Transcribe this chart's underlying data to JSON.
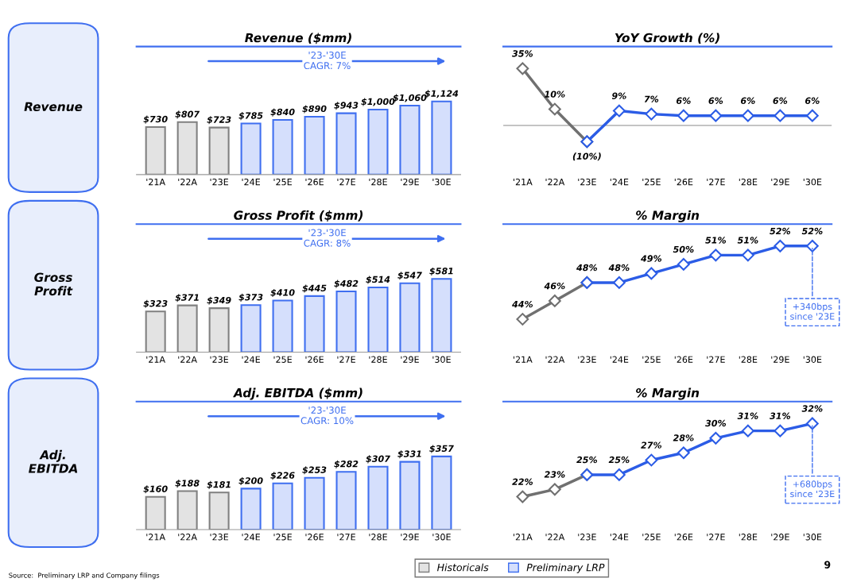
{
  "chart_data": [
    {
      "type": "bar",
      "title": "Revenue ($mm)",
      "ylabel": "Revenue",
      "categories": [
        "'21A",
        "'22A",
        "'23E",
        "'24E",
        "'25E",
        "'26E",
        "'27E",
        "'28E",
        "'29E",
        "'30E"
      ],
      "legend": "bottom",
      "series": [
        {
          "name": "Historicals",
          "color": "#808080",
          "values": [
            730,
            807,
            723,
            null,
            null,
            null,
            null,
            null,
            null,
            null
          ],
          "value_labels": [
            "$730",
            "$807",
            "$723",
            null,
            null,
            null,
            null,
            null,
            null,
            null
          ]
        },
        {
          "name": "Preliminary LRP",
          "color": "#3f6ff0",
          "values": [
            null,
            null,
            null,
            785,
            840,
            890,
            943,
            1000,
            1060,
            1124
          ],
          "value_labels": [
            null,
            null,
            null,
            "$785",
            "$840",
            "$890",
            "$943",
            "$1,000",
            "$1,060",
            "$1,124"
          ]
        }
      ],
      "annotations": [
        "'23-'30E\nCAGR: 7%",
        "Source:  Preliminary LRP and Company filings",
        "9"
      ]
    },
    {
      "type": "line",
      "title": "YoY Growth (%)",
      "categories": [
        "'21A",
        "'22A",
        "'23E",
        "'24E",
        "'25E",
        "'26E",
        "'27E",
        "'28E",
        "'29E",
        "'30E"
      ],
      "marker": "diamond",
      "series": [
        {
          "color": "#707070",
          "values": [
            35,
            10,
            -10,
            null,
            null,
            null,
            null,
            null,
            null,
            null
          ],
          "value_labels": [
            "35%",
            "10%",
            "(10%)",
            null,
            null,
            null,
            null,
            null,
            null,
            null
          ]
        },
        {
          "color": "#2b5ce6",
          "values": [
            null,
            null,
            -10,
            9,
            7,
            6,
            6,
            6,
            6,
            6
          ],
          "value_labels": [
            null,
            null,
            null,
            "9%",
            "7%",
            "6%",
            "6%",
            "6%",
            "6%",
            "6%"
          ]
        }
      ],
      "ref_lines": [
        {
          "axis": "y",
          "value": 0,
          "color": "#b0b0b0"
        }
      ]
    },
    {
      "type": "bar",
      "title": "Gross Profit ($mm)",
      "ylabel": "Gross\nProfit",
      "categories": [
        "'21A",
        "'22A",
        "'23E",
        "'24E",
        "'25E",
        "'26E",
        "'27E",
        "'28E",
        "'29E",
        "'30E"
      ],
      "series": [
        {
          "color": "#808080",
          "values": [
            323,
            371,
            349,
            null,
            null,
            null,
            null,
            null,
            null,
            null
          ],
          "value_labels": [
            "$323",
            "$371",
            "$349",
            null,
            null,
            null,
            null,
            null,
            null,
            null
          ]
        },
        {
          "color": "#3f6ff0",
          "values": [
            null,
            null,
            null,
            373,
            410,
            445,
            482,
            514,
            547,
            581
          ],
          "value_labels": [
            null,
            null,
            null,
            "$373",
            "$410",
            "$445",
            "$482",
            "$514",
            "$547",
            "$581"
          ]
        }
      ],
      "annotations": [
        "'23-'30E\nCAGR: 8%"
      ]
    },
    {
      "type": "line",
      "title": "% Margin",
      "categories": [
        "'21A",
        "'22A",
        "'23E",
        "'24E",
        "'25E",
        "'26E",
        "'27E",
        "'28E",
        "'29E",
        "'30E"
      ],
      "marker": "diamond",
      "series": [
        {
          "color": "#707070",
          "values": [
            44,
            46,
            48,
            null,
            null,
            null,
            null,
            null,
            null,
            null
          ],
          "value_labels": [
            "44%",
            "46%",
            "48%",
            null,
            null,
            null,
            null,
            null,
            null,
            null
          ]
        },
        {
          "color": "#2b5ce6",
          "values": [
            null,
            null,
            48,
            48,
            49,
            50,
            51,
            51,
            52,
            52
          ],
          "value_labels": [
            null,
            null,
            null,
            "48%",
            "49%",
            "50%",
            "51%",
            "51%",
            "52%",
            "52%"
          ]
        }
      ],
      "annotations": [
        {
          "text": "+340bps\nsince '23E",
          "x": "'30E",
          "y": 52
        }
      ]
    },
    {
      "type": "bar",
      "title": "Adj. EBITDA ($mm)",
      "ylabel": "Adj.\nEBITDA",
      "categories": [
        "'21A",
        "'22A",
        "'23E",
        "'24E",
        "'25E",
        "'26E",
        "'27E",
        "'28E",
        "'29E",
        "'30E"
      ],
      "series": [
        {
          "color": "#808080",
          "values": [
            160,
            188,
            181,
            null,
            null,
            null,
            null,
            null,
            null,
            null
          ],
          "value_labels": [
            "$160",
            "$188",
            "$181",
            null,
            null,
            null,
            null,
            null,
            null,
            null
          ]
        },
        {
          "color": "#3f6ff0",
          "values": [
            null,
            null,
            null,
            200,
            226,
            253,
            282,
            307,
            331,
            357
          ],
          "value_labels": [
            null,
            null,
            null,
            "$200",
            "$226",
            "$253",
            "$282",
            "$307",
            "$331",
            "$357"
          ]
        }
      ],
      "annotations": [
        "'23-'30E\nCAGR: 10%"
      ]
    },
    {
      "type": "line",
      "title": "% Margin",
      "categories": [
        "'21A",
        "'22A",
        "'23E",
        "'24E",
        "'25E",
        "'26E",
        "'27E",
        "'28E",
        "'29E",
        "'30E"
      ],
      "marker": "diamond",
      "series": [
        {
          "color": "#707070",
          "values": [
            22,
            23,
            25,
            null,
            null,
            null,
            null,
            null,
            null,
            null
          ],
          "value_labels": [
            "22%",
            "23%",
            "25%",
            null,
            null,
            null,
            null,
            null,
            null,
            null
          ]
        },
        {
          "color": "#2b5ce6",
          "values": [
            null,
            null,
            25,
            25,
            27,
            28,
            30,
            31,
            31,
            32
          ],
          "value_labels": [
            null,
            null,
            null,
            "25%",
            "27%",
            "28%",
            "30%",
            "31%",
            "31%",
            "32%"
          ]
        }
      ],
      "annotations": [
        {
          "text": "+680bps\nsince '23E",
          "x": "'30E",
          "y": 32
        }
      ]
    }
  ]
}
